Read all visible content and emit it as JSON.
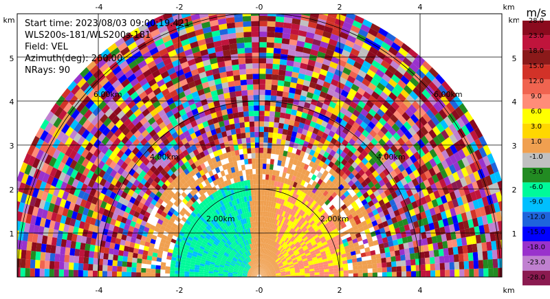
{
  "info": {
    "start_time": "Start time: 2023/08/03 09:00:19.421",
    "instrument": "WLS200s-181/WLS200s-181",
    "field": "Field: VEL",
    "azimuth": "Azimuth(deg): 260.00",
    "nrays": "NRays: 90"
  },
  "axes": {
    "x_unit": "km",
    "y_unit": "km",
    "x_ticks": [
      "-4",
      "-2",
      "-0",
      "2",
      "4"
    ],
    "y_ticks": [
      "1",
      "2",
      "3",
      "4",
      "5"
    ]
  },
  "range_ring_labels": [
    "2.00km",
    "2.00km",
    "4.00km",
    "4.00km",
    "6.00km",
    "6.00km"
  ],
  "colorbar": {
    "unit": "m/s",
    "labels": [
      "28.0",
      "23.0",
      "18.0",
      "15.0",
      "12.0",
      "9.0",
      "6.0",
      "3.0",
      "1.0",
      "-1.0",
      "-3.0",
      "-6.0",
      "-9.0",
      "-12.0",
      "-15.0",
      "-18.0",
      "-23.0",
      "-28.0"
    ],
    "colors": [
      "#8b0a1e",
      "#c0143c",
      "#8b1a1a",
      "#d23228",
      "#f06450",
      "#ff8c78",
      "#ffff00",
      "#ffd700",
      "#f0a050",
      "#c0c0c0",
      "#228b22",
      "#00fa9a",
      "#00bfff",
      "#1e64dc",
      "#0000ff",
      "#9932cc",
      "#c080d0",
      "#8b1a50"
    ]
  },
  "chart_data": {
    "type": "heatmap",
    "title": "",
    "xlabel": "km",
    "ylabel": "km",
    "xlim": [
      -6.0,
      6.0
    ],
    "ylim": [
      0,
      6.0
    ],
    "range_rings_km": [
      2,
      4,
      6
    ],
    "field": "VEL",
    "units": "m/s",
    "color_scale": [
      -28,
      28
    ],
    "nrays": 90,
    "azimuth_deg": 260.0
  }
}
